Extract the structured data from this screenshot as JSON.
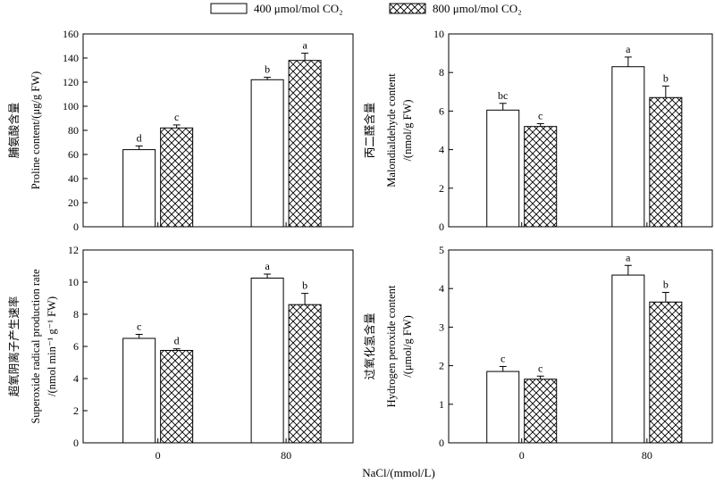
{
  "legend": [
    {
      "label": "400 μmol/mol CO₂",
      "pattern": "none"
    },
    {
      "label": "800 μmol/mol CO₂",
      "pattern": "crosshatch"
    }
  ],
  "xlabel": "NaCl/(mmol/L)",
  "chart_data": [
    {
      "type": "bar",
      "panel": "top-left",
      "categories": [
        "0",
        "80"
      ],
      "ylabel_zh": "脯氨酸含量",
      "ylabel_en": [
        "Proline content/(μg/g FW)"
      ],
      "ylim": [
        0,
        160
      ],
      "yticks": [
        0,
        20,
        40,
        60,
        80,
        100,
        120,
        140,
        160
      ],
      "series": [
        {
          "name": "400 μmol/mol CO₂",
          "values": [
            64,
            122
          ],
          "errors": [
            3,
            2
          ],
          "labels": [
            "d",
            "b"
          ]
        },
        {
          "name": "800 μmol/mol CO₂",
          "values": [
            82,
            138
          ],
          "errors": [
            2.5,
            6
          ],
          "labels": [
            "c",
            "a"
          ]
        }
      ]
    },
    {
      "type": "bar",
      "panel": "top-right",
      "categories": [
        "0",
        "80"
      ],
      "ylabel_zh": "丙二醛含量",
      "ylabel_en": [
        "Malondialdehyde content",
        "/(nmol/g FW)"
      ],
      "ylim": [
        0,
        10
      ],
      "yticks": [
        0,
        2,
        4,
        6,
        8,
        10
      ],
      "series": [
        {
          "name": "400 μmol/mol CO₂",
          "values": [
            6.05,
            8.3
          ],
          "errors": [
            0.35,
            0.5
          ],
          "labels": [
            "bc",
            "a"
          ]
        },
        {
          "name": "800 μmol/mol CO₂",
          "values": [
            5.2,
            6.7
          ],
          "errors": [
            0.15,
            0.6
          ],
          "labels": [
            "c",
            "b"
          ]
        }
      ]
    },
    {
      "type": "bar",
      "panel": "bottom-left",
      "categories": [
        "0",
        "80"
      ],
      "ylabel_zh": "超氧阴离子产生速率",
      "ylabel_en": [
        "Superoxide radical production rate",
        "/(nmol min⁻¹ g⁻¹ FW)"
      ],
      "ylim": [
        0,
        12
      ],
      "yticks": [
        0,
        2,
        4,
        6,
        8,
        10,
        12
      ],
      "series": [
        {
          "name": "400 μmol/mol CO₂",
          "values": [
            6.5,
            10.25
          ],
          "errors": [
            0.25,
            0.25
          ],
          "labels": [
            "c",
            "a"
          ]
        },
        {
          "name": "800 μmol/mol CO₂",
          "values": [
            5.75,
            8.6
          ],
          "errors": [
            0.1,
            0.7
          ],
          "labels": [
            "d",
            "b"
          ]
        }
      ]
    },
    {
      "type": "bar",
      "panel": "bottom-right",
      "categories": [
        "0",
        "80"
      ],
      "ylabel_zh": "过氧化氢含量",
      "ylabel_en": [
        "Hydrogen peroxide content",
        "/(μmol/g FW)"
      ],
      "ylim": [
        0,
        5
      ],
      "yticks": [
        0,
        1,
        2,
        3,
        4,
        5
      ],
      "series": [
        {
          "name": "400 μmol/mol CO₂",
          "values": [
            1.85,
            4.35
          ],
          "errors": [
            0.13,
            0.25
          ],
          "labels": [
            "c",
            "a"
          ]
        },
        {
          "name": "800 μmol/mol CO₂",
          "values": [
            1.65,
            3.65
          ],
          "errors": [
            0.08,
            0.25
          ],
          "labels": [
            "c",
            "b"
          ]
        }
      ]
    }
  ]
}
